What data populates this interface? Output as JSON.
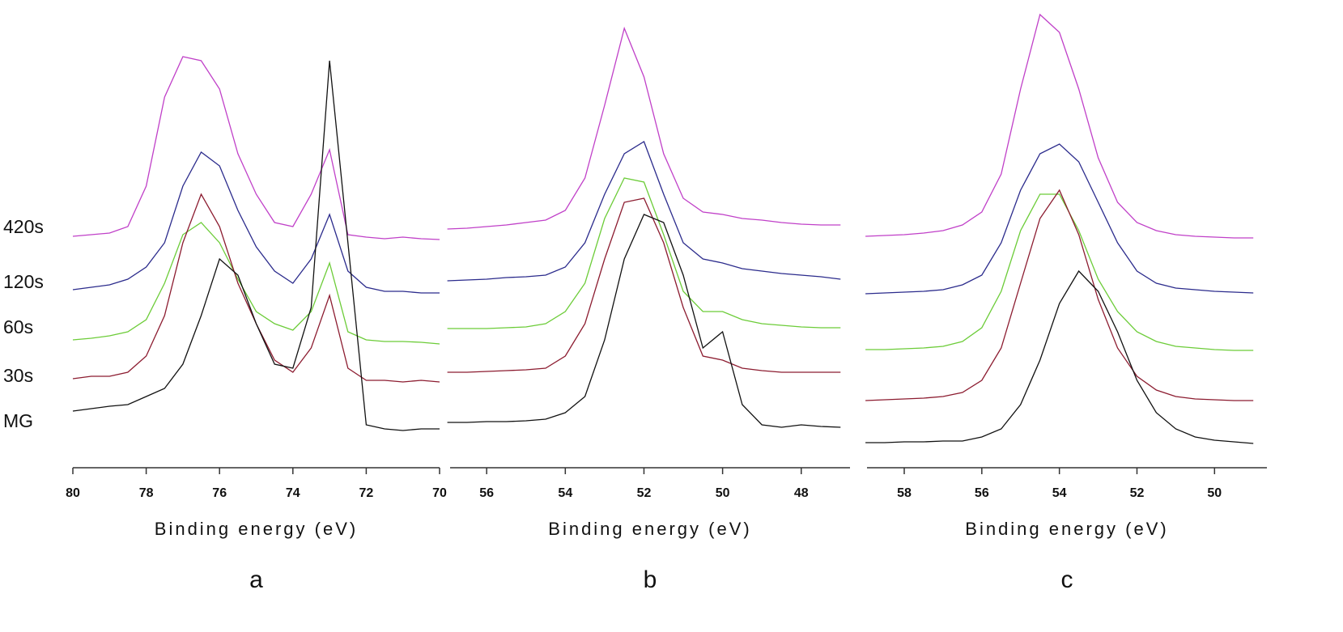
{
  "chart_data": [
    {
      "type": "line",
      "xlabel": "Binding energy (eV)",
      "panel_label": "a",
      "xlim": [
        80,
        70
      ],
      "xticks": [
        80,
        78,
        76,
        74,
        72,
        70
      ],
      "ylim": [
        22,
        600
      ],
      "x": [
        80,
        79.5,
        79,
        78.5,
        78,
        77.5,
        77,
        76.5,
        76,
        75.5,
        75,
        74.5,
        74,
        73.5,
        73,
        72.5,
        72,
        71.5,
        71,
        70.5,
        70
      ],
      "series": [
        {
          "name": "420s",
          "color": "#c040c8",
          "values": [
            308,
            310,
            312,
            320,
            370,
            480,
            530,
            525,
            490,
            410,
            360,
            325,
            320,
            360,
            415,
            310,
            307,
            305,
            307,
            305,
            304
          ]
        },
        {
          "name": "120s",
          "color": "#2b2b8c",
          "values": [
            242,
            245,
            248,
            255,
            270,
            300,
            370,
            412,
            395,
            340,
            295,
            265,
            250,
            280,
            335,
            265,
            245,
            240,
            240,
            238,
            238
          ]
        },
        {
          "name": "60s",
          "color": "#6ccc38",
          "values": [
            180,
            182,
            185,
            190,
            205,
            250,
            310,
            325,
            300,
            255,
            215,
            200,
            192,
            215,
            275,
            190,
            180,
            178,
            178,
            177,
            175
          ]
        },
        {
          "name": "30s",
          "color": "#8c1c30",
          "values": [
            132,
            135,
            135,
            140,
            160,
            210,
            300,
            360,
            320,
            250,
            200,
            155,
            140,
            170,
            235,
            145,
            130,
            130,
            128,
            130,
            128
          ]
        },
        {
          "name": "MG",
          "color": "#111111",
          "values": [
            92,
            95,
            98,
            100,
            110,
            120,
            150,
            210,
            280,
            260,
            200,
            150,
            145,
            220,
            525,
            300,
            75,
            70,
            68,
            70,
            70
          ]
        }
      ]
    },
    {
      "type": "line",
      "xlabel": "Binding energy (eV)",
      "panel_label": "b",
      "xlim": [
        56.93,
        46.76
      ],
      "xticks": [
        56,
        54,
        52,
        50,
        48
      ],
      "ylim": [
        22,
        600
      ],
      "x": [
        57,
        56.5,
        56,
        55.5,
        55,
        54.5,
        54,
        53.5,
        53,
        52.5,
        52,
        51.5,
        51,
        50.5,
        50,
        49.5,
        49,
        48.5,
        48,
        47.5,
        47
      ],
      "series": [
        {
          "color": "#c040c8",
          "values": [
            317,
            318,
            320,
            322,
            325,
            328,
            340,
            380,
            470,
            565,
            505,
            410,
            355,
            338,
            335,
            330,
            328,
            325,
            323,
            322,
            322
          ]
        },
        {
          "color": "#2b2b8c",
          "values": [
            253,
            254,
            255,
            257,
            258,
            260,
            270,
            300,
            360,
            410,
            425,
            360,
            300,
            280,
            275,
            268,
            265,
            262,
            260,
            258,
            255
          ]
        },
        {
          "color": "#6ccc38",
          "values": [
            194,
            194,
            194,
            195,
            196,
            200,
            215,
            250,
            330,
            380,
            375,
            310,
            240,
            215,
            215,
            205,
            200,
            198,
            196,
            195,
            195
          ]
        },
        {
          "color": "#8c1c30",
          "values": [
            140,
            140,
            141,
            142,
            143,
            145,
            160,
            200,
            280,
            350,
            355,
            300,
            220,
            160,
            155,
            145,
            142,
            140,
            140,
            140,
            140
          ]
        },
        {
          "color": "#111111",
          "values": [
            78,
            78,
            79,
            79,
            80,
            82,
            90,
            110,
            180,
            280,
            335,
            325,
            260,
            170,
            190,
            100,
            75,
            72,
            75,
            73,
            72
          ]
        }
      ]
    },
    {
      "type": "line",
      "xlabel": "Binding energy (eV)",
      "panel_label": "c",
      "xlim": [
        58.96,
        48.65
      ],
      "xticks": [
        58,
        56,
        54,
        52,
        50
      ],
      "ylim": [
        22,
        600
      ],
      "x": [
        59,
        58.5,
        58,
        57.5,
        57,
        56.5,
        56,
        55.5,
        55,
        54.5,
        54,
        53.5,
        53,
        52.5,
        52,
        51.5,
        51,
        50.5,
        50,
        49.5,
        49
      ],
      "series": [
        {
          "color": "#c040c8",
          "values": [
            308,
            309,
            310,
            312,
            315,
            322,
            338,
            385,
            490,
            582,
            560,
            490,
            405,
            350,
            325,
            315,
            310,
            308,
            307,
            306,
            306
          ]
        },
        {
          "color": "#2b2b8c",
          "values": [
            237,
            238,
            239,
            240,
            242,
            248,
            260,
            300,
            365,
            410,
            422,
            400,
            350,
            300,
            265,
            250,
            244,
            242,
            240,
            239,
            238
          ]
        },
        {
          "color": "#6ccc38",
          "values": [
            168,
            168,
            169,
            170,
            172,
            178,
            195,
            240,
            315,
            360,
            360,
            315,
            255,
            215,
            190,
            178,
            172,
            170,
            168,
            167,
            167
          ]
        },
        {
          "color": "#8c1c30",
          "values": [
            105,
            106,
            107,
            108,
            110,
            115,
            130,
            170,
            250,
            330,
            365,
            310,
            230,
            170,
            135,
            118,
            110,
            107,
            106,
            105,
            105
          ]
        },
        {
          "color": "#111111",
          "values": [
            53,
            53,
            54,
            54,
            55,
            55,
            60,
            70,
            100,
            155,
            225,
            265,
            240,
            190,
            130,
            90,
            70,
            60,
            56,
            54,
            52
          ]
        }
      ]
    }
  ]
}
